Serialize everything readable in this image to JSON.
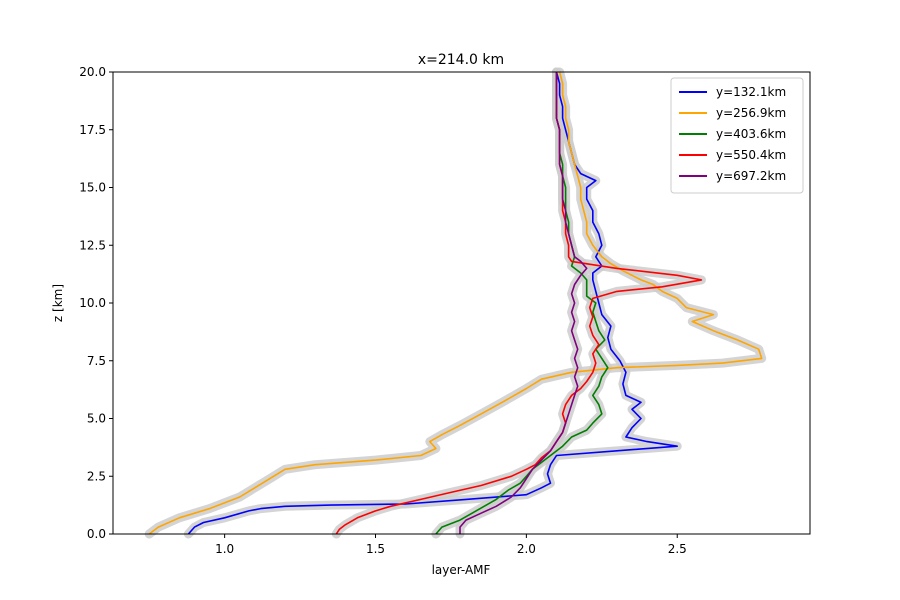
{
  "chart_data": {
    "type": "line",
    "title": "x=214.0 km",
    "xlabel": "layer-AMF",
    "ylabel": "z [km]",
    "xlim": [
      0.63,
      2.94
    ],
    "ylim": [
      0,
      20
    ],
    "x_ticks": [
      1.0,
      1.5,
      2.0,
      2.5
    ],
    "x_tick_labels": [
      "1.0",
      "1.5",
      "2.0",
      "2.5"
    ],
    "y_ticks": [
      0,
      2.5,
      5.0,
      7.5,
      10.0,
      12.5,
      15.0,
      17.5,
      20.0
    ],
    "y_tick_labels": [
      "0.0",
      "2.5",
      "5.0",
      "7.5",
      "10.0",
      "12.5",
      "15.0",
      "17.5",
      "20.0"
    ],
    "grid": false,
    "legend_position": "top-right",
    "uncertainty_band_color": "#cccccc",
    "series": [
      {
        "name": "y=132.1km",
        "color": "#0000ff",
        "points": [
          [
            0.88,
            0
          ],
          [
            0.9,
            0.3
          ],
          [
            0.93,
            0.5
          ],
          [
            1.0,
            0.7
          ],
          [
            1.08,
            1.0
          ],
          [
            1.12,
            1.1
          ],
          [
            1.2,
            1.2
          ],
          [
            1.35,
            1.25
          ],
          [
            1.6,
            1.3
          ],
          [
            1.8,
            1.5
          ],
          [
            2.0,
            1.7
          ],
          [
            2.05,
            2.0
          ],
          [
            2.08,
            2.2
          ],
          [
            2.07,
            2.6
          ],
          [
            2.08,
            3.0
          ],
          [
            2.1,
            3.4
          ],
          [
            2.3,
            3.6
          ],
          [
            2.5,
            3.8
          ],
          [
            2.4,
            4.0
          ],
          [
            2.33,
            4.2
          ],
          [
            2.35,
            4.6
          ],
          [
            2.38,
            5.0
          ],
          [
            2.35,
            5.4
          ],
          [
            2.38,
            5.7
          ],
          [
            2.33,
            6.0
          ],
          [
            2.32,
            6.5
          ],
          [
            2.33,
            7.0
          ],
          [
            2.31,
            7.5
          ],
          [
            2.28,
            8.0
          ],
          [
            2.27,
            8.5
          ],
          [
            2.28,
            9.0
          ],
          [
            2.25,
            9.5
          ],
          [
            2.24,
            10.0
          ],
          [
            2.23,
            10.5
          ],
          [
            2.22,
            11.0
          ],
          [
            2.22,
            11.3
          ],
          [
            2.25,
            11.6
          ],
          [
            2.23,
            12.0
          ],
          [
            2.25,
            12.5
          ],
          [
            2.24,
            13.0
          ],
          [
            2.22,
            13.5
          ],
          [
            2.22,
            14.0
          ],
          [
            2.2,
            14.5
          ],
          [
            2.2,
            15.0
          ],
          [
            2.23,
            15.3
          ],
          [
            2.18,
            15.6
          ],
          [
            2.16,
            16.0
          ],
          [
            2.15,
            16.5
          ],
          [
            2.14,
            17.0
          ],
          [
            2.13,
            17.5
          ],
          [
            2.12,
            18.0
          ],
          [
            2.12,
            18.5
          ],
          [
            2.11,
            19.0
          ],
          [
            2.11,
            19.5
          ],
          [
            2.1,
            20.0
          ]
        ]
      },
      {
        "name": "y=256.9km",
        "color": "#ffa500",
        "points": [
          [
            0.75,
            0
          ],
          [
            0.78,
            0.3
          ],
          [
            0.85,
            0.7
          ],
          [
            0.95,
            1.1
          ],
          [
            1.05,
            1.6
          ],
          [
            1.1,
            2.0
          ],
          [
            1.15,
            2.4
          ],
          [
            1.2,
            2.8
          ],
          [
            1.3,
            3.0
          ],
          [
            1.5,
            3.2
          ],
          [
            1.65,
            3.4
          ],
          [
            1.7,
            3.7
          ],
          [
            1.68,
            4.0
          ],
          [
            1.72,
            4.3
          ],
          [
            1.78,
            4.7
          ],
          [
            1.85,
            5.2
          ],
          [
            1.92,
            5.7
          ],
          [
            2.0,
            6.3
          ],
          [
            2.05,
            6.7
          ],
          [
            2.15,
            7.0
          ],
          [
            2.3,
            7.2
          ],
          [
            2.5,
            7.3
          ],
          [
            2.65,
            7.4
          ],
          [
            2.78,
            7.6
          ],
          [
            2.77,
            8.0
          ],
          [
            2.7,
            8.4
          ],
          [
            2.62,
            8.8
          ],
          [
            2.55,
            9.2
          ],
          [
            2.62,
            9.5
          ],
          [
            2.53,
            9.8
          ],
          [
            2.5,
            10.2
          ],
          [
            2.45,
            10.5
          ],
          [
            2.42,
            10.8
          ],
          [
            2.38,
            11.0
          ],
          [
            2.32,
            11.4
          ],
          [
            2.28,
            11.7
          ],
          [
            2.25,
            12.0
          ],
          [
            2.22,
            12.5
          ],
          [
            2.2,
            13.0
          ],
          [
            2.2,
            13.5
          ],
          [
            2.19,
            14.0
          ],
          [
            2.18,
            14.5
          ],
          [
            2.18,
            15.0
          ],
          [
            2.17,
            15.5
          ],
          [
            2.16,
            16.0
          ],
          [
            2.15,
            16.5
          ],
          [
            2.14,
            17.0
          ],
          [
            2.14,
            17.5
          ],
          [
            2.13,
            18.0
          ],
          [
            2.13,
            18.5
          ],
          [
            2.12,
            19.0
          ],
          [
            2.12,
            19.5
          ],
          [
            2.11,
            20.0
          ]
        ]
      },
      {
        "name": "y=403.6km",
        "color": "#008000",
        "points": [
          [
            1.7,
            0
          ],
          [
            1.72,
            0.3
          ],
          [
            1.78,
            0.6
          ],
          [
            1.82,
            0.9
          ],
          [
            1.86,
            1.2
          ],
          [
            1.9,
            1.5
          ],
          [
            1.94,
            1.9
          ],
          [
            1.98,
            2.2
          ],
          [
            2.0,
            2.5
          ],
          [
            2.02,
            2.8
          ],
          [
            2.05,
            3.1
          ],
          [
            2.08,
            3.4
          ],
          [
            2.12,
            3.8
          ],
          [
            2.15,
            4.2
          ],
          [
            2.2,
            4.5
          ],
          [
            2.22,
            4.8
          ],
          [
            2.25,
            5.2
          ],
          [
            2.24,
            5.6
          ],
          [
            2.22,
            6.0
          ],
          [
            2.24,
            6.4
          ],
          [
            2.25,
            6.8
          ],
          [
            2.27,
            7.2
          ],
          [
            2.25,
            7.6
          ],
          [
            2.23,
            8.0
          ],
          [
            2.26,
            8.4
          ],
          [
            2.24,
            8.8
          ],
          [
            2.23,
            9.2
          ],
          [
            2.22,
            9.6
          ],
          [
            2.23,
            10.0
          ],
          [
            2.2,
            10.3
          ],
          [
            2.2,
            10.6
          ],
          [
            2.2,
            11.0
          ],
          [
            2.18,
            11.3
          ],
          [
            2.15,
            11.6
          ],
          [
            2.16,
            12.0
          ],
          [
            2.15,
            12.5
          ],
          [
            2.14,
            13.0
          ],
          [
            2.14,
            13.5
          ],
          [
            2.13,
            14.0
          ],
          [
            2.13,
            14.5
          ],
          [
            2.13,
            15.0
          ],
          [
            2.12,
            15.5
          ],
          [
            2.12,
            16.0
          ],
          [
            2.11,
            16.5
          ],
          [
            2.11,
            17.0
          ],
          [
            2.11,
            17.5
          ],
          [
            2.1,
            18.0
          ],
          [
            2.1,
            18.5
          ],
          [
            2.1,
            19.0
          ],
          [
            2.1,
            19.5
          ],
          [
            2.1,
            20.0
          ]
        ]
      },
      {
        "name": "y=550.4km",
        "color": "#ff0000",
        "points": [
          [
            1.37,
            0
          ],
          [
            1.38,
            0.2
          ],
          [
            1.4,
            0.4
          ],
          [
            1.44,
            0.7
          ],
          [
            1.5,
            1.0
          ],
          [
            1.55,
            1.2
          ],
          [
            1.65,
            1.5
          ],
          [
            1.75,
            1.8
          ],
          [
            1.85,
            2.1
          ],
          [
            1.95,
            2.5
          ],
          [
            2.0,
            2.8
          ],
          [
            2.03,
            3.0
          ],
          [
            2.05,
            3.3
          ],
          [
            2.08,
            3.6
          ],
          [
            2.1,
            4.0
          ],
          [
            2.12,
            4.4
          ],
          [
            2.13,
            4.8
          ],
          [
            2.12,
            5.2
          ],
          [
            2.13,
            5.6
          ],
          [
            2.15,
            6.0
          ],
          [
            2.18,
            6.3
          ],
          [
            2.2,
            6.6
          ],
          [
            2.22,
            7.0
          ],
          [
            2.23,
            7.4
          ],
          [
            2.22,
            7.8
          ],
          [
            2.24,
            8.2
          ],
          [
            2.22,
            8.6
          ],
          [
            2.21,
            9.0
          ],
          [
            2.22,
            9.4
          ],
          [
            2.21,
            9.8
          ],
          [
            2.22,
            10.2
          ],
          [
            2.3,
            10.5
          ],
          [
            2.45,
            10.7
          ],
          [
            2.58,
            11.0
          ],
          [
            2.5,
            11.2
          ],
          [
            2.3,
            11.5
          ],
          [
            2.15,
            11.8
          ],
          [
            2.14,
            12.0
          ],
          [
            2.14,
            12.5
          ],
          [
            2.13,
            13.0
          ],
          [
            2.13,
            13.5
          ],
          [
            2.12,
            14.0
          ],
          [
            2.12,
            14.5
          ],
          [
            2.12,
            15.0
          ],
          [
            2.12,
            15.5
          ],
          [
            2.11,
            16.0
          ],
          [
            2.11,
            16.5
          ],
          [
            2.11,
            17.0
          ],
          [
            2.11,
            17.5
          ],
          [
            2.1,
            18.0
          ],
          [
            2.1,
            18.5
          ],
          [
            2.1,
            19.0
          ],
          [
            2.1,
            19.5
          ],
          [
            2.1,
            20.0
          ]
        ]
      },
      {
        "name": "y=697.2km",
        "color": "#800080",
        "points": [
          [
            1.78,
            0
          ],
          [
            1.78,
            0.3
          ],
          [
            1.8,
            0.6
          ],
          [
            1.85,
            0.9
          ],
          [
            1.9,
            1.2
          ],
          [
            1.95,
            1.6
          ],
          [
            1.98,
            2.0
          ],
          [
            2.0,
            2.4
          ],
          [
            2.02,
            2.8
          ],
          [
            2.05,
            3.2
          ],
          [
            2.08,
            3.6
          ],
          [
            2.1,
            4.0
          ],
          [
            2.12,
            4.4
          ],
          [
            2.13,
            4.8
          ],
          [
            2.14,
            5.2
          ],
          [
            2.15,
            5.6
          ],
          [
            2.16,
            6.0
          ],
          [
            2.17,
            6.4
          ],
          [
            2.16,
            6.8
          ],
          [
            2.17,
            7.2
          ],
          [
            2.16,
            7.6
          ],
          [
            2.17,
            8.0
          ],
          [
            2.16,
            8.4
          ],
          [
            2.15,
            8.8
          ],
          [
            2.16,
            9.2
          ],
          [
            2.15,
            9.6
          ],
          [
            2.16,
            10.0
          ],
          [
            2.15,
            10.4
          ],
          [
            2.16,
            10.8
          ],
          [
            2.18,
            11.2
          ],
          [
            2.2,
            11.5
          ],
          [
            2.18,
            11.8
          ],
          [
            2.16,
            12.0
          ],
          [
            2.15,
            12.5
          ],
          [
            2.14,
            13.0
          ],
          [
            2.13,
            13.5
          ],
          [
            2.13,
            14.0
          ],
          [
            2.12,
            14.5
          ],
          [
            2.12,
            15.0
          ],
          [
            2.12,
            15.5
          ],
          [
            2.11,
            16.0
          ],
          [
            2.11,
            16.5
          ],
          [
            2.11,
            17.0
          ],
          [
            2.11,
            17.5
          ],
          [
            2.1,
            18.0
          ],
          [
            2.1,
            18.5
          ],
          [
            2.1,
            19.0
          ],
          [
            2.1,
            19.5
          ],
          [
            2.1,
            20.0
          ]
        ]
      }
    ]
  }
}
